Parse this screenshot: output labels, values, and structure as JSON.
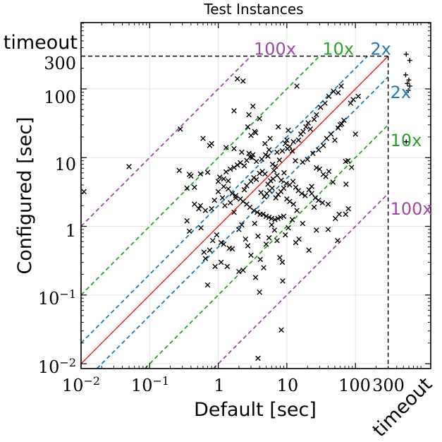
{
  "chart_data": {
    "type": "scatter",
    "title": "Test Instances",
    "xlabel": "Default [sec]",
    "ylabel": "Configured [sec]",
    "xscale": "log",
    "yscale": "log",
    "xlim": [
      0.01,
      800
    ],
    "ylim": [
      0.0085,
      800
    ],
    "x_tick_labels": [
      "10^-2",
      "10^-1",
      "1",
      "10",
      "100",
      "300",
      "timeout"
    ],
    "y_tick_labels": [
      "10^-2",
      "10^-1",
      "1",
      "10",
      "100",
      "300",
      "timeout"
    ],
    "timeout": 300,
    "reference_lines": [
      {
        "label": "2x",
        "factor": 2,
        "color": "#1f77b4"
      },
      {
        "label": "10x",
        "factor": 10,
        "color": "#2ca02c"
      },
      {
        "label": "100x",
        "factor": 100,
        "color": "#9b4ca0"
      }
    ],
    "diagonal_color": "#ff0000",
    "grid": true,
    "series": [
      {
        "marker": "x",
        "points": [
          [
            0.011,
            3.2
          ],
          [
            0.05,
            7.4
          ],
          [
            0.27,
            6.5
          ],
          [
            0.28,
            26
          ],
          [
            0.38,
            5.7
          ],
          [
            0.4,
            5.4
          ],
          [
            0.6,
            19
          ],
          [
            0.75,
            15
          ],
          [
            0.8,
            16
          ],
          [
            1.3,
            14
          ],
          [
            1.7,
            13.5
          ],
          [
            2.2,
            12
          ],
          [
            3.0,
            21
          ],
          [
            3.5,
            23
          ],
          [
            2.8,
            11.5
          ],
          [
            3.1,
            10
          ],
          [
            4.3,
            9.5
          ],
          [
            4.9,
            11
          ],
          [
            5.3,
            10.5
          ],
          [
            6.2,
            8
          ],
          [
            6.8,
            7.5
          ],
          [
            7.2,
            12
          ],
          [
            7.8,
            9.2
          ],
          [
            8.6,
            12.5
          ],
          [
            9.5,
            16
          ],
          [
            10.2,
            13.5
          ],
          [
            11,
            14.5
          ],
          [
            12,
            12.5
          ],
          [
            13.3,
            9
          ],
          [
            14.8,
            18
          ],
          [
            16,
            22
          ],
          [
            17.3,
            24
          ],
          [
            19,
            28
          ],
          [
            20.5,
            32
          ],
          [
            22,
            26
          ],
          [
            25,
            36
          ],
          [
            27,
            42
          ],
          [
            31,
            54
          ],
          [
            36,
            62
          ],
          [
            41,
            78
          ],
          [
            48,
            92
          ],
          [
            56,
            88
          ],
          [
            62,
            110
          ],
          [
            1.7,
            48
          ],
          [
            1.9,
            140
          ],
          [
            2.3,
            130
          ],
          [
            2.7,
            28
          ],
          [
            3.4,
            24
          ],
          [
            4.8,
            16
          ],
          [
            5.5,
            13
          ],
          [
            6.5,
            6.5
          ],
          [
            7.2,
            5.5
          ],
          [
            8.3,
            4.7
          ],
          [
            9.8,
            4.2
          ],
          [
            11,
            4
          ],
          [
            12.3,
            4.5
          ],
          [
            13.5,
            3.7
          ],
          [
            14.7,
            3.3
          ],
          [
            16.5,
            3
          ],
          [
            18.5,
            2.8
          ],
          [
            21,
            3.4
          ],
          [
            23,
            3.8
          ],
          [
            26,
            2.6
          ],
          [
            29,
            2.4
          ],
          [
            33,
            2.2
          ],
          [
            40,
            2.1
          ],
          [
            51,
            1.3
          ],
          [
            58,
            1.5
          ],
          [
            72,
            1.5
          ],
          [
            79,
            1.8
          ],
          [
            1.0,
            4.5
          ],
          [
            1.2,
            3.8
          ],
          [
            1.4,
            3.5
          ],
          [
            1.6,
            3
          ],
          [
            1.8,
            2.8
          ],
          [
            2.1,
            2.5
          ],
          [
            2.3,
            2.3
          ],
          [
            2.6,
            2.1
          ],
          [
            2.9,
            1.9
          ],
          [
            3.3,
            1.7
          ],
          [
            3.7,
            1.6
          ],
          [
            4.1,
            1.5
          ],
          [
            4.5,
            1.5
          ],
          [
            5.0,
            1.4
          ],
          [
            5.5,
            1.35
          ],
          [
            6.0,
            1.3
          ],
          [
            6.7,
            1.25
          ],
          [
            7.4,
            1.3
          ],
          [
            8.1,
            1.35
          ],
          [
            9.0,
            1.4
          ],
          [
            0.35,
            1.2
          ],
          [
            0.38,
            0.85
          ],
          [
            0.52,
            1.8
          ],
          [
            0.56,
            0.95
          ],
          [
            0.62,
            0.42
          ],
          [
            0.75,
            0.45
          ],
          [
            0.83,
            0.62
          ],
          [
            0.95,
            0.75
          ],
          [
            1.1,
            0.58
          ],
          [
            1.2,
            0.55
          ],
          [
            1.45,
            0.48
          ],
          [
            1.6,
            0.47
          ],
          [
            1.7,
            1.6
          ],
          [
            2.0,
            0.9
          ],
          [
            2.2,
            1.05
          ],
          [
            2.5,
            0.65
          ],
          [
            2.7,
            0.52
          ],
          [
            3.0,
            0.38
          ],
          [
            3.4,
            1.1
          ],
          [
            3.8,
            0.72
          ],
          [
            4.1,
            0.33
          ],
          [
            4.6,
            0.25
          ],
          [
            5.0,
            0.55
          ],
          [
            5.5,
            0.68
          ],
          [
            6.0,
            1.05
          ],
          [
            6.6,
            0.88
          ],
          [
            7.2,
            0.62
          ],
          [
            7.9,
            0.35
          ],
          [
            8.6,
            0.3
          ],
          [
            9.5,
            0.75
          ],
          [
            10.5,
            0.95
          ],
          [
            12,
            1.25
          ],
          [
            13.5,
            0.58
          ],
          [
            15,
            0.65
          ],
          [
            17,
            1.1
          ],
          [
            21,
            0.45
          ],
          [
            40,
            0.9
          ],
          [
            55,
            0.62
          ],
          [
            3.8,
            0.012
          ],
          [
            8.3,
            0.031
          ],
          [
            0.7,
            0.14
          ],
          [
            0.9,
            0.26
          ],
          [
            1.35,
            0.26
          ],
          [
            2.0,
            0.22
          ],
          [
            2.3,
            0.23
          ],
          [
            3.5,
            0.18
          ],
          [
            4.0,
            0.11
          ],
          [
            8.7,
            0.16
          ],
          [
            0.65,
            0.34
          ],
          [
            1.1,
            0.3
          ],
          [
            0.35,
            3.6
          ],
          [
            0.45,
            2.1
          ],
          [
            0.55,
            2.0
          ],
          [
            0.65,
            1.7
          ],
          [
            0.8,
            1.8
          ],
          [
            0.88,
            2.4
          ],
          [
            1.0,
            3.2
          ],
          [
            1.15,
            2.6
          ],
          [
            1.25,
            2.0
          ],
          [
            1.5,
            2.2
          ],
          [
            1.8,
            2.6
          ],
          [
            2.4,
            3.4
          ],
          [
            2.6,
            3.9
          ],
          [
            3.0,
            4.5
          ],
          [
            3.3,
            5.1
          ],
          [
            3.6,
            4.8
          ],
          [
            4.0,
            5.9
          ],
          [
            4.4,
            6.3
          ],
          [
            4.8,
            5.8
          ],
          [
            5.3,
            4.1
          ],
          [
            5.8,
            4.6
          ],
          [
            6.3,
            4.9
          ],
          [
            6.9,
            2.6
          ],
          [
            7.5,
            2.9
          ],
          [
            8.2,
            3.2
          ],
          [
            9.0,
            3.6
          ],
          [
            10,
            2.5
          ],
          [
            11,
            2.3
          ],
          [
            12.5,
            2.1
          ],
          [
            14,
            1.7
          ],
          [
            1.3,
            6.2
          ],
          [
            1.5,
            6.8
          ],
          [
            1.7,
            7.2
          ],
          [
            1.9,
            7.8
          ],
          [
            2.1,
            8.4
          ],
          [
            2.4,
            7.6
          ],
          [
            2.6,
            9.1
          ],
          [
            2.9,
            10.2
          ],
          [
            3.2,
            11
          ],
          [
            3.6,
            8.8
          ],
          [
            0.55,
            5.8
          ],
          [
            0.7,
            6.1
          ],
          [
            1.05,
            5.2
          ],
          [
            1.2,
            4.9
          ],
          [
            1.4,
            4.6
          ],
          [
            4.2,
            3.1
          ],
          [
            4.7,
            2.7
          ],
          [
            5.1,
            3.0
          ],
          [
            5.6,
            3.3
          ],
          [
            6.1,
            3.6
          ],
          [
            17,
            8.6
          ],
          [
            20,
            9.4
          ],
          [
            24,
            11.5
          ],
          [
            29,
            13
          ],
          [
            34,
            15
          ],
          [
            38,
            19
          ],
          [
            44,
            22
          ],
          [
            50,
            18
          ],
          [
            56,
            27
          ],
          [
            63,
            31
          ],
          [
            72,
            8.8
          ],
          [
            78,
            9
          ],
          [
            88,
            7.2
          ],
          [
            47,
            4.4
          ],
          [
            41,
            6.3
          ],
          [
            34,
            5.7
          ],
          [
            30,
            6.8
          ],
          [
            37,
            5.3
          ],
          [
            27,
            7.1
          ],
          [
            23,
            3.0
          ],
          [
            0.45,
            3.7
          ],
          [
            25,
            1.9
          ],
          [
            27,
            0.88
          ],
          [
            73,
            4.1
          ],
          [
            60,
            30
          ],
          [
            68,
            35
          ],
          [
            85,
            62
          ],
          [
            93,
            70
          ],
          [
            110,
            78
          ],
          [
            100,
            22
          ],
          [
            14,
            110
          ],
          [
            2.8,
            42
          ],
          [
            3.2,
            56
          ],
          [
            4.0,
            37
          ],
          [
            7.5,
            28
          ],
          [
            10,
            18
          ],
          [
            10.5,
            25
          ],
          [
            12.5,
            17
          ],
          [
            9.1,
            6.0
          ],
          [
            5.7,
            19
          ]
        ]
      },
      {
        "marker": "+",
        "points": [
          [
            550,
            320
          ],
          [
            620,
            260
          ],
          [
            540,
            160
          ],
          [
            600,
            135
          ],
          [
            570,
            120
          ],
          [
            620,
            110
          ],
          [
            590,
            95
          ],
          [
            550,
            17
          ]
        ]
      }
    ]
  }
}
